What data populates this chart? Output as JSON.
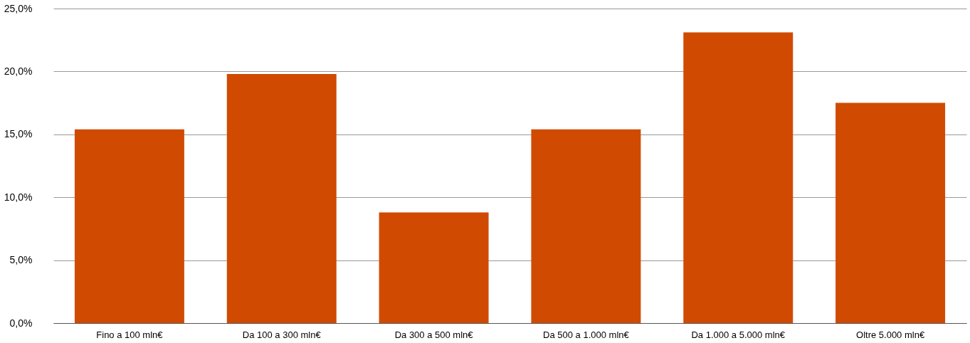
{
  "chart_data": {
    "type": "bar",
    "categories": [
      "Fino a 100 mln€",
      "Da 100 a 300 mln€",
      "Da 300 a 500 mln€",
      "Da 500 a 1.000 mln€",
      "Da 1.000 a 5.000 mln€",
      "Oltre 5.000 mln€"
    ],
    "values": [
      15.4,
      19.8,
      8.8,
      15.4,
      23.1,
      17.5
    ],
    "color": "#d04a02",
    "ylim": [
      0,
      25
    ],
    "yticks": [
      {
        "value": 0,
        "label": "0,0%"
      },
      {
        "value": 5,
        "label": "5,0%"
      },
      {
        "value": 10,
        "label": "10,0%"
      },
      {
        "value": 15,
        "label": "15,0%"
      },
      {
        "value": 20,
        "label": "20,0%"
      },
      {
        "value": 25,
        "label": "25,0%"
      }
    ],
    "grid": "y"
  }
}
